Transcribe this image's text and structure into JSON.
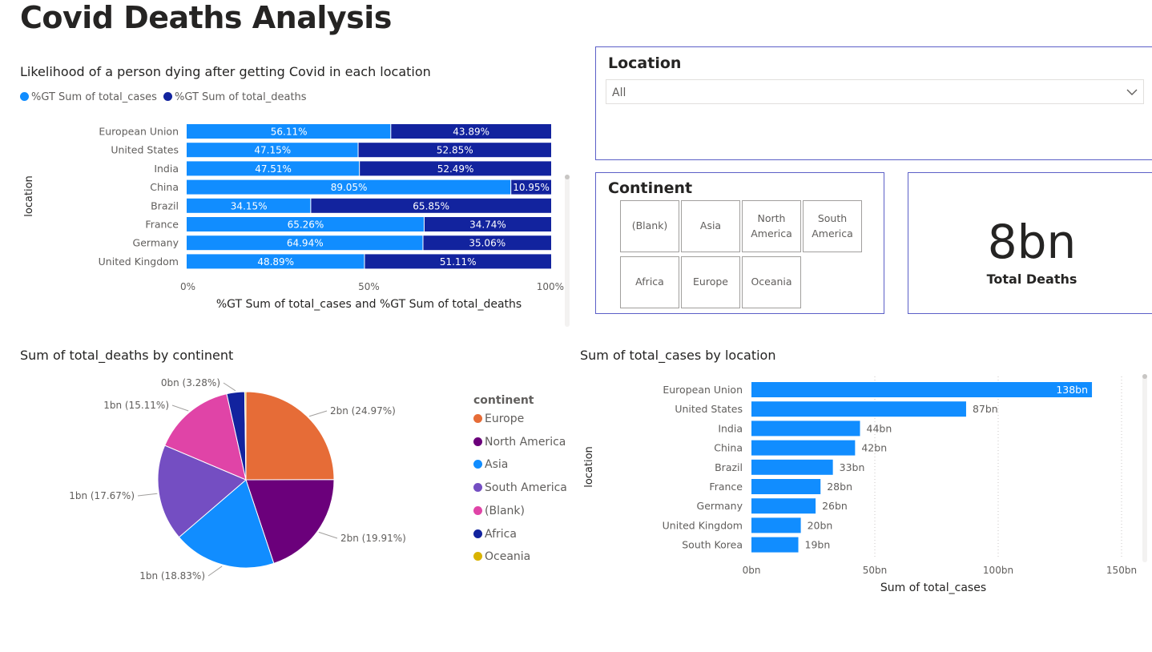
{
  "page": {
    "title": "Covid Deaths Analysis"
  },
  "colors": {
    "cases": "#118DFF",
    "deaths": "#12239E",
    "europe": "#E66C37",
    "north_america": "#6B007B",
    "asia": "#118DFF",
    "south_america": "#744EC2",
    "blank": "#D64550",
    "africa": "#12239E",
    "oceania": "#D9B300",
    "blank_slice": "#E044A7"
  },
  "likelihood_chart": {
    "title": "Likelihood of a person dying after getting Covid in each location",
    "legend": [
      {
        "label": "%GT Sum of total_cases",
        "color": "#118DFF"
      },
      {
        "label": "%GT Sum of total_deaths",
        "color": "#12239E"
      }
    ]
  },
  "location_slicer": {
    "header": "Location",
    "selected": "All"
  },
  "continent_slicer": {
    "header": "Continent",
    "tiles": [
      "(Blank)",
      "Asia",
      "North America",
      "South America",
      "Africa",
      "Europe",
      "Oceania"
    ]
  },
  "card": {
    "value": "8bn",
    "label": "Total Deaths"
  },
  "pie_chart": {
    "title": "Sum of total_deaths by continent",
    "legend_title": "continent"
  },
  "cases_chart": {
    "title": "Sum of total_cases by location"
  },
  "chart_data": [
    {
      "id": "likelihood",
      "type": "bar",
      "stacked": "100%",
      "orientation": "horizontal",
      "title": "Likelihood of a person dying after getting Covid in each location",
      "xlabel": "%GT Sum of total_cases and %GT Sum of total_deaths",
      "ylabel": "location",
      "categories": [
        "European Union",
        "United States",
        "India",
        "China",
        "Brazil",
        "France",
        "Germany",
        "United Kingdom"
      ],
      "series": [
        {
          "name": "%GT Sum of total_cases",
          "values": [
            56.11,
            47.15,
            47.51,
            89.05,
            34.15,
            65.26,
            64.94,
            48.89
          ],
          "color": "#118DFF"
        },
        {
          "name": "%GT Sum of total_deaths",
          "values": [
            43.89,
            52.85,
            52.49,
            10.95,
            65.85,
            34.74,
            35.06,
            51.11
          ],
          "color": "#12239E"
        }
      ],
      "data_labels": [
        [
          "56.11%",
          "47.15%",
          "47.51%",
          "89.05%",
          "34.15%",
          "65.26%",
          "64.94%",
          "48.89%"
        ],
        [
          "43.89%",
          "52.85%",
          "52.49%",
          "10.95%",
          "65.85%",
          "34.74%",
          "35.06%",
          "51.11%"
        ]
      ],
      "xticks": [
        "0%",
        "50%",
        "100%"
      ],
      "xlim": [
        0,
        100
      ],
      "legend_position": "top-left"
    },
    {
      "id": "deaths_pie",
      "type": "pie",
      "title": "Sum of total_deaths by continent",
      "legend_title": "continent",
      "legend_position": "right",
      "legend": [
        "Europe",
        "North America",
        "Asia",
        "South America",
        "(Blank)",
        "Africa",
        "Oceania"
      ],
      "slices": [
        {
          "name": "Europe",
          "percent": 24.97,
          "label": "2bn (24.97%)",
          "color": "#E66C37"
        },
        {
          "name": "North America",
          "percent": 19.91,
          "label": "2bn (19.91%)",
          "color": "#6B007B"
        },
        {
          "name": "Asia",
          "percent": 18.83,
          "label": "1bn (18.83%)",
          "color": "#118DFF"
        },
        {
          "name": "South America",
          "percent": 17.67,
          "label": "1bn (17.67%)",
          "color": "#744EC2"
        },
        {
          "name": "(Blank)",
          "percent": 15.11,
          "label": "1bn (15.11%)",
          "color": "#E044A7"
        },
        {
          "name": "Africa",
          "percent": 3.28,
          "label": "0bn (3.28%)",
          "color": "#12239E"
        },
        {
          "name": "Oceania",
          "percent": 0.23,
          "label": "",
          "color": "#D9B300"
        }
      ]
    },
    {
      "id": "cases_bar",
      "type": "bar",
      "orientation": "horizontal",
      "title": "Sum of total_cases by location",
      "xlabel": "Sum of total_cases",
      "ylabel": "location",
      "categories": [
        "European Union",
        "United States",
        "India",
        "China",
        "Brazil",
        "France",
        "Germany",
        "United Kingdom",
        "South Korea"
      ],
      "values": [
        138,
        87,
        44,
        42,
        33,
        28,
        26,
        20,
        19
      ],
      "data_labels": [
        "138bn",
        "87bn",
        "44bn",
        "42bn",
        "33bn",
        "28bn",
        "26bn",
        "20bn",
        "19bn"
      ],
      "unit": "bn",
      "xticks": [
        "0bn",
        "50bn",
        "100bn",
        "150bn"
      ],
      "xlim": [
        0,
        150
      ],
      "grid": true,
      "color": "#118DFF"
    }
  ]
}
